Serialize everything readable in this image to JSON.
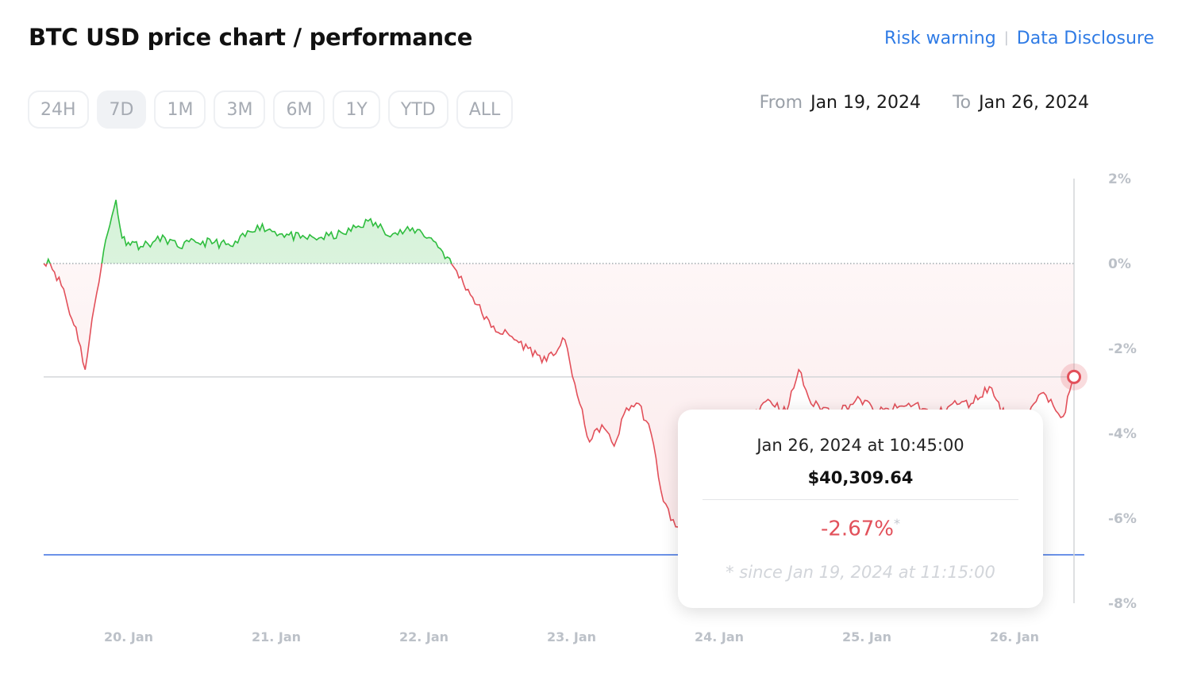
{
  "header": {
    "title": "BTC USD price chart / performance",
    "risk_link": "Risk warning",
    "separator": "|",
    "disclosure_link": "Data Disclosure"
  },
  "ranges": [
    "24H",
    "7D",
    "1M",
    "3M",
    "6M",
    "1Y",
    "YTD",
    "ALL"
  ],
  "active_range": "7D",
  "dates": {
    "from_label": "From",
    "from_value": "Jan 19, 2024",
    "to_label": "To",
    "to_value": "Jan 26, 2024"
  },
  "tooltip": {
    "date": "Jan 26, 2024 at 10:45:00",
    "price": "$40,309.64",
    "change": "-2.67%",
    "asterisk": "*",
    "note": "* since Jan 19, 2024 at 11:15:00"
  },
  "colors": {
    "positive": "#2ebd3e",
    "negative": "#e2505a",
    "reference_low": "#3b6fe0",
    "link": "#2f7be5"
  },
  "chart_data": {
    "type": "area",
    "ylabel_unit": "%",
    "ylim": [
      -8,
      2
    ],
    "yticks": [
      "2%",
      "0%",
      "-2%",
      "-4%",
      "-6%",
      "-8%"
    ],
    "x_tick_labels": [
      "20. Jan",
      "21. Jan",
      "22. Jan",
      "23. Jan",
      "24. Jan",
      "25. Jan",
      "26. Jan"
    ],
    "grid": false,
    "baseline": 0,
    "current_value": -2.67,
    "min_value": -6.86,
    "series": [
      {
        "x": [
          "2024-01-19T11:15",
          "2024-01-19T12:00",
          "2024-01-19T13:00",
          "2024-01-19T14:30",
          "2024-01-19T15:30",
          "2024-01-19T16:30",
          "2024-01-19T18:00",
          "2024-01-19T19:30",
          "2024-01-19T21:00",
          "2024-01-19T22:00",
          "2024-01-19T23:00",
          "2024-01-20T00:00",
          "2024-01-20T01:00",
          "2024-01-20T02:00",
          "2024-01-20T03:00",
          "2024-01-20T05:00",
          "2024-01-20T07:00",
          "2024-01-20T09:00",
          "2024-01-20T12:00",
          "2024-01-20T15:00",
          "2024-01-20T18:00",
          "2024-01-20T22:00",
          "2024-01-21T02:00",
          "2024-01-21T05:00",
          "2024-01-21T08:00",
          "2024-01-21T12:00",
          "2024-01-21T16:00",
          "2024-01-21T20:00",
          "2024-01-22T00:00",
          "2024-01-22T03:00",
          "2024-01-22T06:00",
          "2024-01-22T09:00",
          "2024-01-22T12:00",
          "2024-01-22T15:00",
          "2024-01-22T18:00",
          "2024-01-22T21:00",
          "2024-01-23T00:00",
          "2024-01-23T02:00",
          "2024-01-23T04:00",
          "2024-01-23T06:00",
          "2024-01-23T08:00",
          "2024-01-23T10:00",
          "2024-01-23T12:00",
          "2024-01-23T14:00",
          "2024-01-23T16:00",
          "2024-01-23T18:00",
          "2024-01-23T20:00",
          "2024-01-23T22:00",
          "2024-01-24T00:00",
          "2024-01-24T03:00",
          "2024-01-24T06:00",
          "2024-01-24T09:00",
          "2024-01-24T12:00",
          "2024-01-24T14:00",
          "2024-01-24T16:00",
          "2024-01-24T20:00",
          "2024-01-25T00:00",
          "2024-01-25T03:00",
          "2024-01-25T06:00",
          "2024-01-25T09:00",
          "2024-01-25T12:00",
          "2024-01-25T15:00",
          "2024-01-25T18:00",
          "2024-01-25T21:00",
          "2024-01-26T00:00",
          "2024-01-26T03:00",
          "2024-01-26T05:00",
          "2024-01-26T07:00",
          "2024-01-26T09:00",
          "2024-01-26T10:45"
        ],
        "values": [
          0.0,
          0.1,
          -0.2,
          -0.6,
          -1.2,
          -1.5,
          -2.5,
          -1.0,
          0.3,
          0.9,
          1.5,
          0.6,
          0.5,
          0.5,
          0.4,
          0.5,
          0.6,
          0.4,
          0.5,
          0.5,
          0.4,
          0.9,
          0.7,
          0.6,
          0.6,
          0.7,
          1.0,
          0.7,
          0.8,
          0.5,
          -0.1,
          -0.8,
          -1.5,
          -1.7,
          -2.0,
          -2.3,
          -1.8,
          -3.1,
          -4.2,
          -3.8,
          -4.3,
          -3.4,
          -3.3,
          -4.0,
          -5.6,
          -6.2,
          -6.6,
          -6.86,
          -6.5,
          -5.2,
          -3.6,
          -3.2,
          -3.5,
          -2.5,
          -3.3,
          -3.5,
          -3.2,
          -3.5,
          -3.4,
          -3.3,
          -3.6,
          -3.3,
          -3.3,
          -2.9,
          -3.7,
          -3.7,
          -3.1,
          -3.2,
          -3.6,
          -2.67
        ]
      }
    ]
  }
}
